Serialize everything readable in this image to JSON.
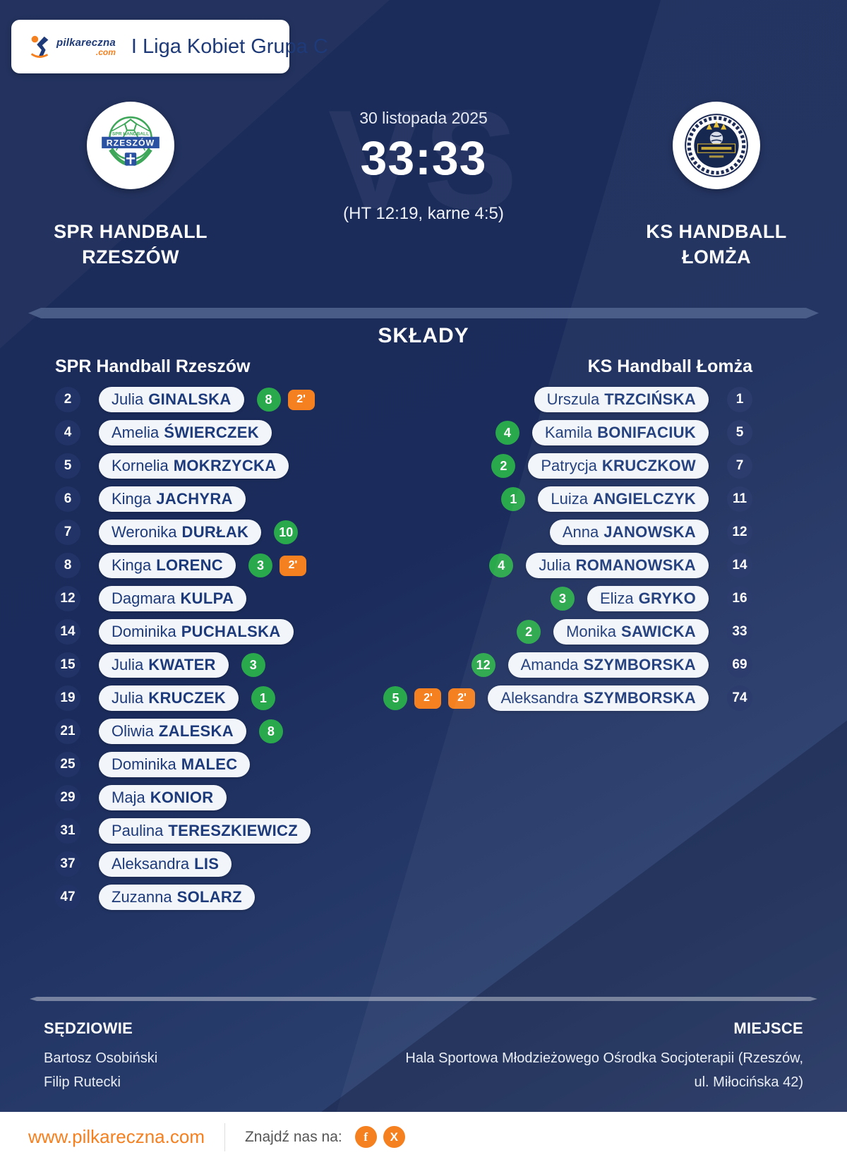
{
  "header": {
    "logo_text": "pilkareczna",
    "logo_tld": ".com",
    "league": "I Liga Kobiet Grupa C"
  },
  "match": {
    "date": "30 listopada 2025",
    "score": "33:33",
    "detail": "(HT 12:19, karne 4:5)",
    "vs_watermark": "VS",
    "home_name_line1": "SPR HANDBALL",
    "home_name_line2": "RZESZÓW",
    "away_name_line1": "KS HANDBALL",
    "away_name_line2": "ŁOMŻA"
  },
  "crests": {
    "home": {
      "top_text": "SPR HANDBALL",
      "banner": "RZESZÓW"
    }
  },
  "lineups": {
    "title": "SKŁADY",
    "home": {
      "header": "SPR Handball Rzeszów",
      "players": [
        {
          "number": "2",
          "first": "Julia",
          "last": "GINALSKA",
          "goals": "8",
          "penalties": [
            "2'"
          ]
        },
        {
          "number": "4",
          "first": "Amelia",
          "last": "ŚWIERCZEK",
          "goals": null,
          "penalties": []
        },
        {
          "number": "5",
          "first": "Kornelia",
          "last": "MOKRZYCKA",
          "goals": null,
          "penalties": []
        },
        {
          "number": "6",
          "first": "Kinga",
          "last": "JACHYRA",
          "goals": null,
          "penalties": []
        },
        {
          "number": "7",
          "first": "Weronika",
          "last": "DURŁAK",
          "goals": "10",
          "penalties": []
        },
        {
          "number": "8",
          "first": "Kinga",
          "last": "LORENC",
          "goals": "3",
          "penalties": [
            "2'"
          ]
        },
        {
          "number": "12",
          "first": "Dagmara",
          "last": "KULPA",
          "goals": null,
          "penalties": []
        },
        {
          "number": "14",
          "first": "Dominika",
          "last": "PUCHALSKA",
          "goals": null,
          "penalties": []
        },
        {
          "number": "15",
          "first": "Julia",
          "last": "KWATER",
          "goals": "3",
          "penalties": []
        },
        {
          "number": "19",
          "first": "Julia",
          "last": "KRUCZEK",
          "goals": "1",
          "penalties": []
        },
        {
          "number": "21",
          "first": "Oliwia",
          "last": "ZALESKA",
          "goals": "8",
          "penalties": []
        },
        {
          "number": "25",
          "first": "Dominika",
          "last": "MALEC",
          "goals": null,
          "penalties": []
        },
        {
          "number": "29",
          "first": "Maja",
          "last": "KONIOR",
          "goals": null,
          "penalties": []
        },
        {
          "number": "31",
          "first": "Paulina",
          "last": "TERESZKIEWICZ",
          "goals": null,
          "penalties": []
        },
        {
          "number": "37",
          "first": "Aleksandra",
          "last": "LIS",
          "goals": null,
          "penalties": []
        },
        {
          "number": "47",
          "first": "Zuzanna",
          "last": "SOLARZ",
          "goals": null,
          "penalties": []
        }
      ]
    },
    "away": {
      "header": "KS Handball Łomża",
      "players": [
        {
          "number": "1",
          "first": "Urszula",
          "last": "TRZCIŃSKA",
          "goals": null,
          "penalties": []
        },
        {
          "number": "5",
          "first": "Kamila",
          "last": "BONIFACIUK",
          "goals": "4",
          "penalties": []
        },
        {
          "number": "7",
          "first": "Patrycja",
          "last": "KRUCZKOW",
          "goals": "2",
          "penalties": []
        },
        {
          "number": "11",
          "first": "Luiza",
          "last": "ANGIELCZYK",
          "goals": "1",
          "penalties": []
        },
        {
          "number": "12",
          "first": "Anna",
          "last": "JANOWSKA",
          "goals": null,
          "penalties": []
        },
        {
          "number": "14",
          "first": "Julia",
          "last": "ROMANOWSKA",
          "goals": "4",
          "penalties": []
        },
        {
          "number": "16",
          "first": "Eliza",
          "last": "GRYKO",
          "goals": "3",
          "penalties": []
        },
        {
          "number": "33",
          "first": "Monika",
          "last": "SAWICKA",
          "goals": "2",
          "penalties": []
        },
        {
          "number": "69",
          "first": "Amanda",
          "last": "SZYMBORSKA",
          "goals": "12",
          "penalties": []
        },
        {
          "number": "74",
          "first": "Aleksandra",
          "last": "SZYMBORSKA",
          "goals": "5",
          "penalties": [
            "2'",
            "2'"
          ]
        }
      ]
    }
  },
  "officials": {
    "referees_label": "SĘDZIOWIE",
    "referees": [
      "Bartosz Osobiński",
      "Filip Rutecki"
    ],
    "venue_label": "MIEJSCE",
    "venue_lines": [
      "Hala Sportowa Młodzieżowego Ośrodka Socjoterapii (Rzeszów,",
      "ul. Miłocińska 42)"
    ]
  },
  "footer": {
    "site": "www.pilkareczna.com",
    "find_us": "Znajdź nas na:",
    "facebook_glyph": "f",
    "x_glyph": "X"
  },
  "colors": {
    "background_navy": "#1b2b59",
    "accent_orange": "#f58020",
    "goal_green": "#2aa84c",
    "pill_text_navy": "#1d3a7a",
    "divider_blue": "#51648f"
  }
}
